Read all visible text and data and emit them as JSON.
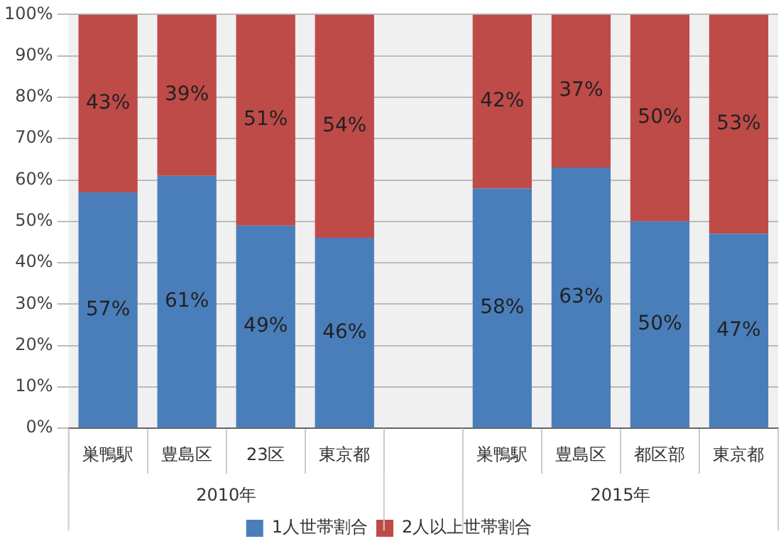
{
  "chart_data": {
    "type": "bar",
    "stacked": true,
    "categories": [
      "巣鴨駅",
      "豊島区",
      "23区",
      "東京都",
      null,
      "巣鴨駅",
      "豊島区",
      "都区部",
      "東京都"
    ],
    "series": [
      {
        "name": "1人世帯割合",
        "color": "#4a7ebb",
        "values": [
          57,
          61,
          49,
          46,
          null,
          58,
          63,
          50,
          47
        ],
        "value_labels": [
          "57%",
          "61%",
          "49%",
          "46%",
          null,
          "58%",
          "63%",
          "50%",
          "47%"
        ]
      },
      {
        "name": "2人以上世帯割合",
        "color": "#be4b48",
        "values": [
          43,
          39,
          51,
          54,
          null,
          42,
          37,
          50,
          53
        ],
        "value_labels": [
          "43%",
          "39%",
          "51%",
          "54%",
          null,
          "42%",
          "37%",
          "50%",
          "53%"
        ]
      }
    ],
    "ylim": [
      0,
      100
    ],
    "yticks": [
      {
        "value": 0,
        "label": "0%"
      },
      {
        "value": 10,
        "label": "10%"
      },
      {
        "value": 20,
        "label": "20%"
      },
      {
        "value": 30,
        "label": "30%"
      },
      {
        "value": 40,
        "label": "40%"
      },
      {
        "value": 50,
        "label": "50%"
      },
      {
        "value": 60,
        "label": "60%"
      },
      {
        "value": 70,
        "label": "70%"
      },
      {
        "value": 80,
        "label": "80%"
      },
      {
        "value": 90,
        "label": "90%"
      },
      {
        "value": 100,
        "label": "100%"
      }
    ],
    "grid": "y",
    "legend": "bottom",
    "annotations": [
      "2010年",
      "2015年"
    ]
  }
}
